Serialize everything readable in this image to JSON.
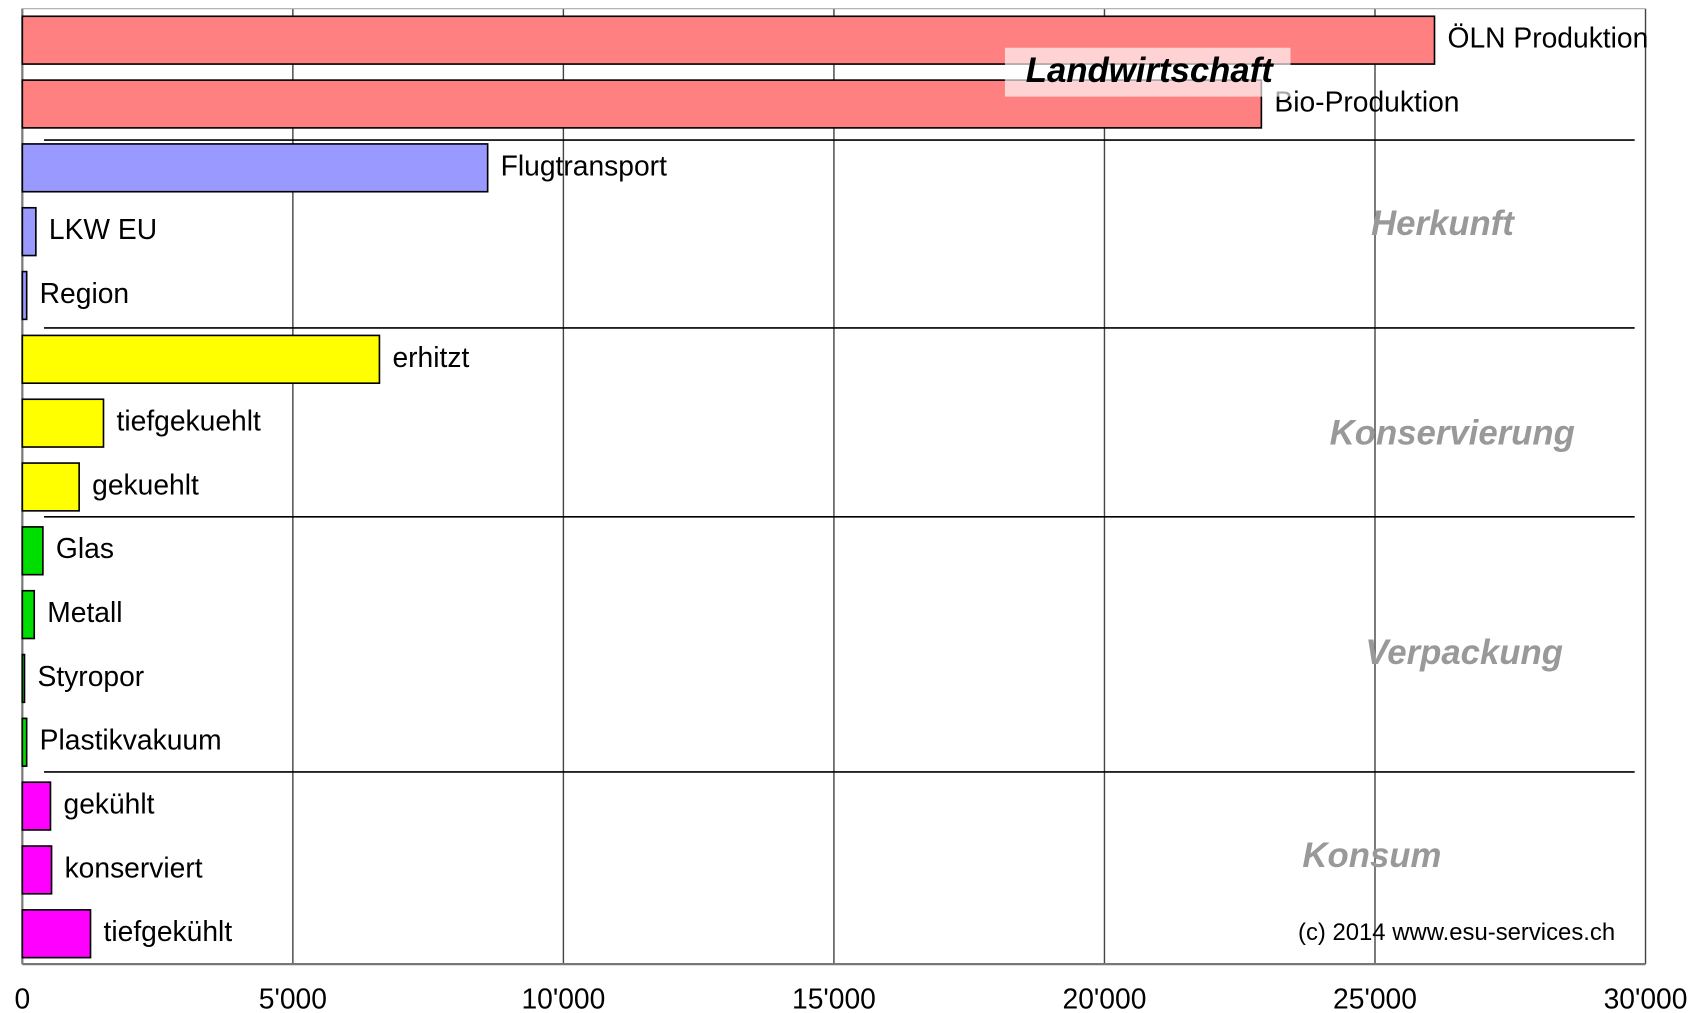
{
  "chart_data": {
    "type": "bar",
    "orientation": "horizontal",
    "categories": [
      "ÖLN Produktion",
      "Bio-Produktion",
      "Flugtransport",
      "LKW EU",
      "Region",
      "erhitzt",
      "tiefgekuehlt",
      "gekuehlt",
      "Glas",
      "Metall",
      "Styropor",
      "Plastikvakuum",
      "gekühlt",
      "konserviert",
      "tiefgekühlt"
    ],
    "values": [
      26100,
      22900,
      8600,
      250,
      80,
      6600,
      1500,
      1050,
      380,
      220,
      40,
      80,
      520,
      540,
      1260
    ],
    "colors": [
      "#ff8080",
      "#ff8080",
      "#9999ff",
      "#9999ff",
      "#9999ff",
      "#ffff00",
      "#ffff00",
      "#ffff00",
      "#00dd00",
      "#00dd00",
      "#00dd00",
      "#00dd00",
      "#ff00ff",
      "#ff00ff",
      "#ff00ff"
    ],
    "groups": [
      "Landwirtschaft",
      "Herkunft",
      "Konservierung",
      "Verpackung",
      "Konsum"
    ],
    "xlim": [
      0,
      30000
    ],
    "xticks": [
      0,
      {
        "value": 5000,
        "label": "5'000"
      },
      {
        "value": 10000,
        "label": "10'000"
      },
      {
        "value": 15000,
        "label": "15'000"
      },
      {
        "value": 20000,
        "label": "20'000"
      },
      {
        "value": 25000,
        "label": "25'000"
      },
      {
        "value": 30000,
        "label": "30'000"
      }
    ],
    "grid": true,
    "annotation": "(c) 2014 www.esu-services.ch"
  }
}
